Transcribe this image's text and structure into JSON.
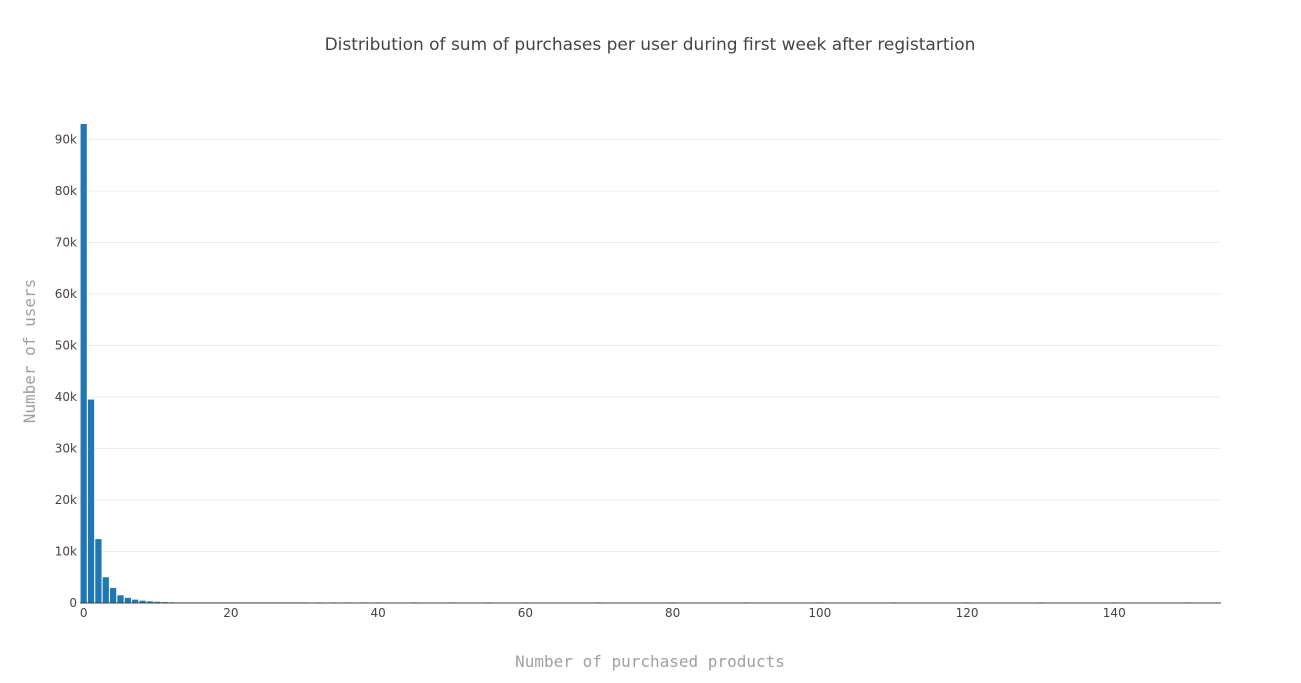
{
  "chart_data": {
    "type": "bar",
    "title": "Distribution of sum of purchases per user during first week after registartion",
    "xlabel": "Number of purchased products",
    "ylabel": "Number of users",
    "xlim": [
      -0.5,
      154.5
    ],
    "ylim": [
      0,
      93000
    ],
    "x_ticks": [
      0,
      20,
      40,
      60,
      80,
      100,
      120,
      140
    ],
    "x_tick_labels": [
      "0",
      "20",
      "40",
      "60",
      "80",
      "100",
      "120",
      "140"
    ],
    "y_ticks": [
      0,
      10000,
      20000,
      30000,
      40000,
      50000,
      60000,
      70000,
      80000,
      90000
    ],
    "y_tick_labels": [
      "0",
      "10k",
      "20k",
      "30k",
      "40k",
      "50k",
      "60k",
      "70k",
      "80k",
      "90k"
    ],
    "grid": true,
    "bar_color": "#1f77b4",
    "x": [
      0,
      1,
      2,
      3,
      4,
      5,
      6,
      7,
      8,
      9,
      10,
      11,
      12,
      13,
      14,
      15,
      16,
      17,
      18,
      19,
      20,
      21,
      22,
      23,
      24,
      25,
      26,
      27,
      28,
      29,
      30,
      32,
      34,
      36,
      38,
      40,
      45,
      50,
      55,
      60,
      70,
      80,
      90,
      100,
      110,
      120,
      130,
      140,
      150
    ],
    "values": [
      93000,
      39500,
      12400,
      5000,
      2900,
      1500,
      1000,
      650,
      450,
      320,
      240,
      180,
      140,
      110,
      90,
      75,
      60,
      50,
      42,
      35,
      30,
      26,
      22,
      19,
      16,
      14,
      12,
      10,
      9,
      8,
      7,
      6,
      5,
      4,
      4,
      3,
      3,
      2,
      2,
      2,
      1,
      1,
      1,
      1,
      1,
      1,
      1,
      1,
      1
    ]
  }
}
